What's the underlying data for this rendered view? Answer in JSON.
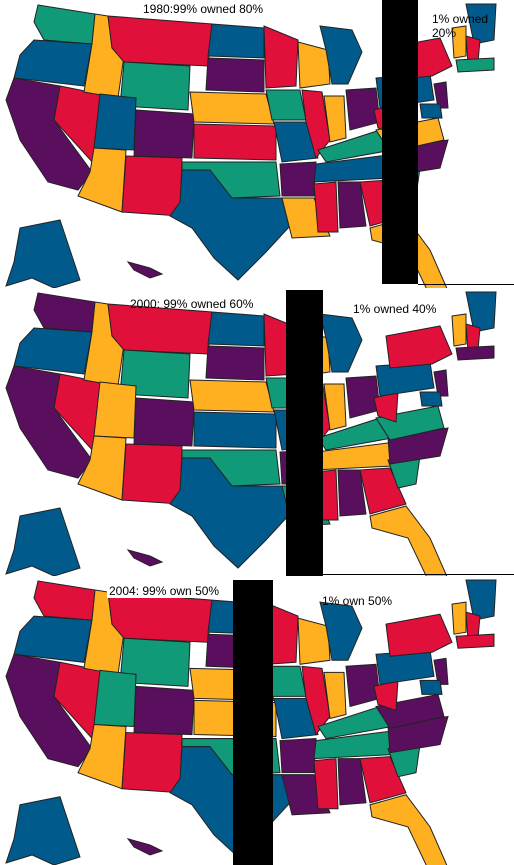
{
  "colors": {
    "crimson": "#E0103A",
    "blue": "#005A8C",
    "gold": "#FFB020",
    "teal": "#109A78",
    "purple": "#5A0F5E",
    "separator": "#000000",
    "background": "#FFFFFF"
  },
  "panels": [
    {
      "name": "1980",
      "caption_left": "1980:99% owned 80%",
      "caption_right": "1% owned\n20%"
    },
    {
      "name": "2000",
      "caption_left": "2000: 99% owned 60%",
      "caption_right": "1% owned 40%"
    },
    {
      "name": "2004",
      "caption_left": "2004: 99% own 50%",
      "caption_right": "1% own 50%"
    }
  ]
}
